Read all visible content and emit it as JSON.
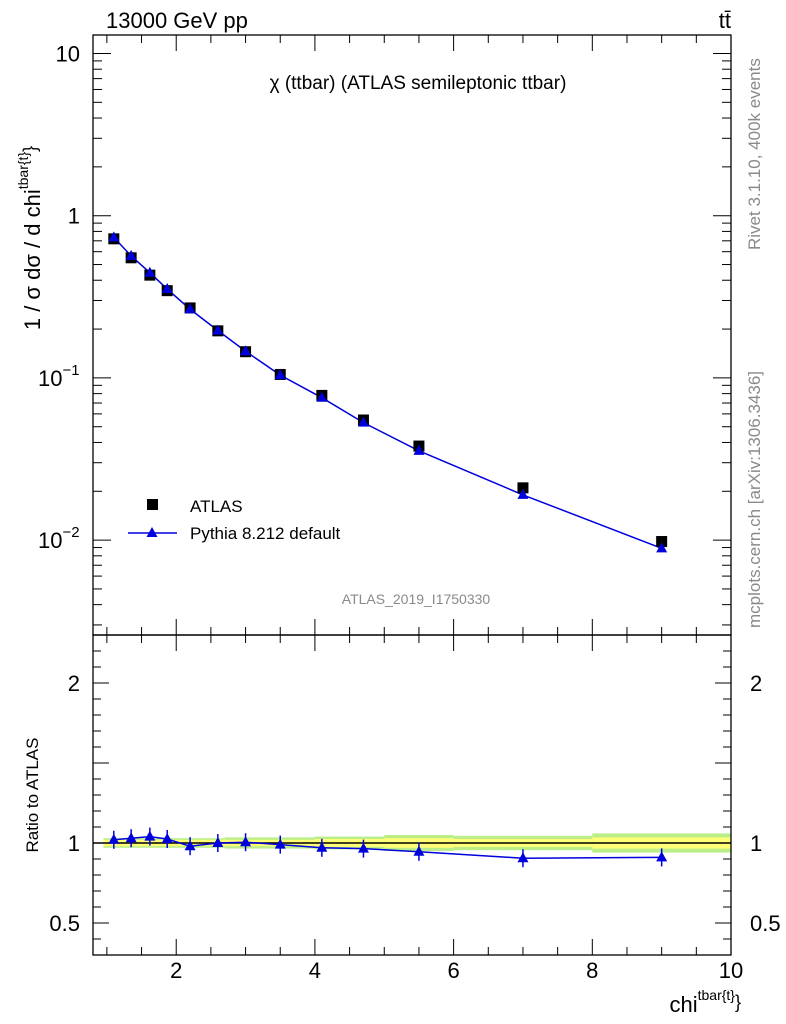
{
  "header": {
    "energy_label": "13000 GeV pp",
    "process_label": "tt̄"
  },
  "side_labels": {
    "rivet": "Rivet 3.1.10,  400k events",
    "mcplots": "mcplots.cern.ch [arXiv:1306.3436]"
  },
  "watermark": "ATLAS_2019_I1750330",
  "chart_data": [
    {
      "type": "scatter",
      "panel": "main",
      "title": "χ (ttbar) (ATLAS semileptonic ttbar)",
      "ylabel": "1 / σ dσ / d chi^{tbar{t}}",
      "yscale": "log",
      "ylim": [
        0.0026,
        13
      ],
      "xlim": [
        0.8,
        10
      ],
      "yticks": [
        {
          "value": 10,
          "label": "10"
        },
        {
          "value": 1,
          "label": "1"
        },
        {
          "value": 0.1,
          "label": "10",
          "exp": "−1"
        },
        {
          "value": 0.01,
          "label": "10",
          "exp": "−2"
        }
      ],
      "legend": {
        "placement": "bottom-left"
      },
      "x": [
        1.1,
        1.35,
        1.62,
        1.87,
        2.2,
        2.6,
        3.0,
        3.5,
        4.1,
        4.7,
        5.5,
        7.0,
        9.0
      ],
      "series": [
        {
          "name": "ATLAS",
          "marker": "square",
          "color": "#000000",
          "values": [
            0.72,
            0.55,
            0.43,
            0.345,
            0.27,
            0.195,
            0.145,
            0.105,
            0.078,
            0.055,
            0.038,
            0.021,
            0.0098
          ]
        },
        {
          "name": "Pythia 8.212 default",
          "marker": "triangle",
          "color": "#0000dd",
          "values": [
            0.735,
            0.565,
            0.445,
            0.353,
            0.265,
            0.196,
            0.146,
            0.104,
            0.0755,
            0.053,
            0.0355,
            0.019,
            0.0089
          ]
        }
      ]
    },
    {
      "type": "line",
      "panel": "ratio",
      "ylabel": "Ratio to ATLAS",
      "xlabel": "chi^{tbar{t}}",
      "ylim": [
        0.3,
        2.3
      ],
      "xlim": [
        0.8,
        10
      ],
      "yticks": [
        {
          "value": 2,
          "label": "2"
        },
        {
          "value": 1,
          "label": "1"
        },
        {
          "value": 0.5,
          "label": "0.5"
        }
      ],
      "xticks": [
        {
          "value": 2,
          "label": "2"
        },
        {
          "value": 4,
          "label": "4"
        },
        {
          "value": 6,
          "label": "6"
        },
        {
          "value": 8,
          "label": "8"
        },
        {
          "value": 10,
          "label": "10"
        }
      ],
      "reference": 1.0,
      "x": [
        1.1,
        1.35,
        1.62,
        1.87,
        2.2,
        2.6,
        3.0,
        3.5,
        4.1,
        4.7,
        5.5,
        7.0,
        9.0
      ],
      "series": [
        {
          "name": "Pythia 8.212 default",
          "color": "#0000dd",
          "values": [
            1.02,
            1.03,
            1.04,
            1.025,
            0.98,
            1.0,
            1.005,
            0.99,
            0.97,
            0.965,
            0.945,
            0.905,
            0.91
          ]
        }
      ],
      "uncertainty_bands": [
        {
          "x0": 0.95,
          "x1": 2.7,
          "stat": 0.02,
          "total": 0.03
        },
        {
          "x0": 2.7,
          "x1": 4.0,
          "stat": 0.02,
          "total": 0.035
        },
        {
          "x0": 4.0,
          "x1": 5.0,
          "stat": 0.025,
          "total": 0.04
        },
        {
          "x0": 5.0,
          "x1": 6.0,
          "stat": 0.03,
          "total": 0.05
        },
        {
          "x0": 6.0,
          "x1": 8.0,
          "stat": 0.025,
          "total": 0.045
        },
        {
          "x0": 8.0,
          "x1": 10.0,
          "stat": 0.035,
          "total": 0.06
        }
      ],
      "colors": {
        "stat_band": "#ffff77",
        "total_band": "#bbee88"
      }
    }
  ]
}
